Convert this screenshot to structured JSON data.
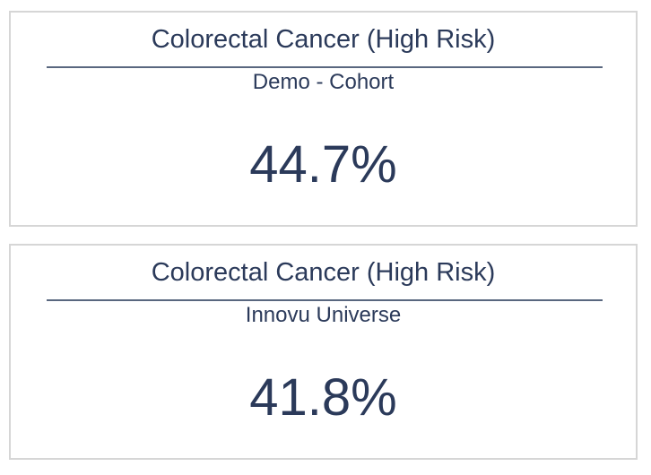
{
  "cards": [
    {
      "title": "Colorectal Cancer (High Risk)",
      "subtitle": "Demo - Cohort",
      "value": "44.7%"
    },
    {
      "title": "Colorectal Cancer (High Risk)",
      "subtitle": "Innovu Universe",
      "value": "41.8%"
    }
  ],
  "colors": {
    "text": "#2b3a5a",
    "divider": "#59677f",
    "border": "#d6d6d6"
  }
}
